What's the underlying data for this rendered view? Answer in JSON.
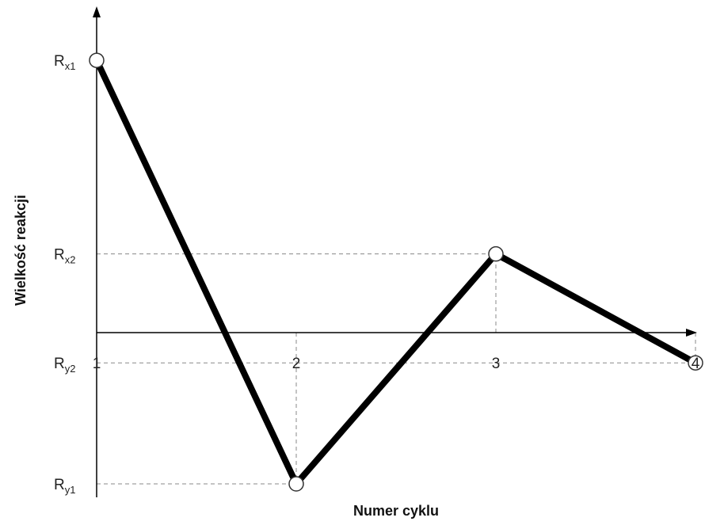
{
  "chart_data": {
    "type": "line",
    "xlabel": "Numer cyklu",
    "ylabel": "Wielkość reakcji",
    "x_ticks": [
      "1",
      "2",
      "3",
      "4"
    ],
    "y_levels": [
      {
        "base": "R",
        "sub": "x1"
      },
      {
        "base": "R",
        "sub": "x2"
      },
      {
        "base": "R",
        "sub": "y2"
      },
      {
        "base": "R",
        "sub": "y1"
      }
    ],
    "series": [
      {
        "points": [
          {
            "x": 1,
            "y": 0.9
          },
          {
            "x": 2,
            "y": -0.5
          },
          {
            "x": 3,
            "y": 0.26
          },
          {
            "x": 4,
            "y": -0.1
          }
        ],
        "color": "#000000"
      }
    ],
    "xlim": [
      1,
      4
    ],
    "ylim": [
      -0.5,
      0.9
    ],
    "grid": "dashed guide lines to each point"
  }
}
